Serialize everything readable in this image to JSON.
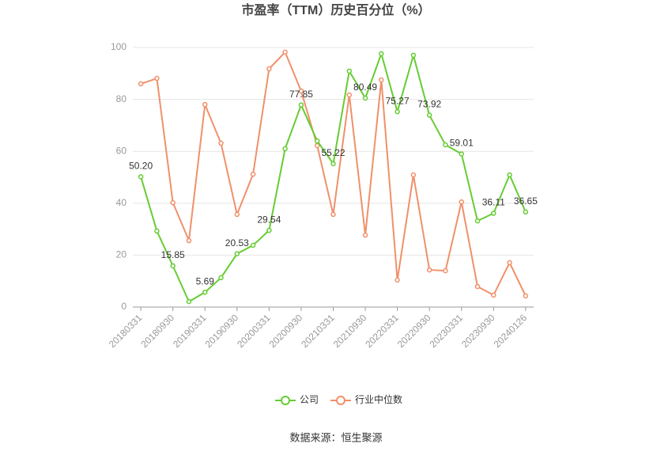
{
  "chart_data": {
    "type": "line",
    "title": "市盈率（TTM）历史百分位（%）",
    "source": "数据来源：恒生聚源",
    "categories": [
      "20180331",
      null,
      "20180930",
      null,
      "20190331",
      null,
      "20190930",
      null,
      "20200331",
      null,
      "20200930",
      null,
      "20210331",
      null,
      "20210930",
      null,
      "20220331",
      null,
      "20220930",
      null,
      "20230331",
      null,
      "20230930",
      null,
      "20240126"
    ],
    "series": [
      {
        "name": "公司",
        "color": "#66cc33",
        "values": [
          50.2,
          29.3,
          15.85,
          2.1,
          5.69,
          11.3,
          20.53,
          23.8,
          29.54,
          61,
          77.85,
          64,
          55.22,
          90.9,
          80.49,
          97.6,
          75.27,
          97,
          73.92,
          62.5,
          59.01,
          33.2,
          36.11,
          50.9,
          36.65
        ],
        "value_labels": [
          "50.20",
          null,
          "15.85",
          null,
          "5.69",
          null,
          "20.53",
          null,
          "29.54",
          null,
          "77.85",
          null,
          "55.22",
          null,
          "80.49",
          null,
          "75.27",
          null,
          "73.92",
          null,
          "59.01",
          null,
          "36.11",
          null,
          "36.65"
        ]
      },
      {
        "name": "行业中位数",
        "color": "#f0906a",
        "values": [
          86,
          88.1,
          40.2,
          25.6,
          78,
          63.1,
          35.7,
          51.2,
          91.8,
          98.2,
          83.2,
          62.2,
          35.7,
          81.7,
          27.7,
          87.5,
          10.4,
          50.9,
          14.3,
          14,
          40.5,
          7.9,
          4.6,
          17.1,
          4.3
        ]
      }
    ],
    "ylim": [
      0,
      100
    ],
    "yticks": [
      0,
      20,
      40,
      60,
      80,
      100
    ],
    "grid": true,
    "legend": "bottom"
  }
}
